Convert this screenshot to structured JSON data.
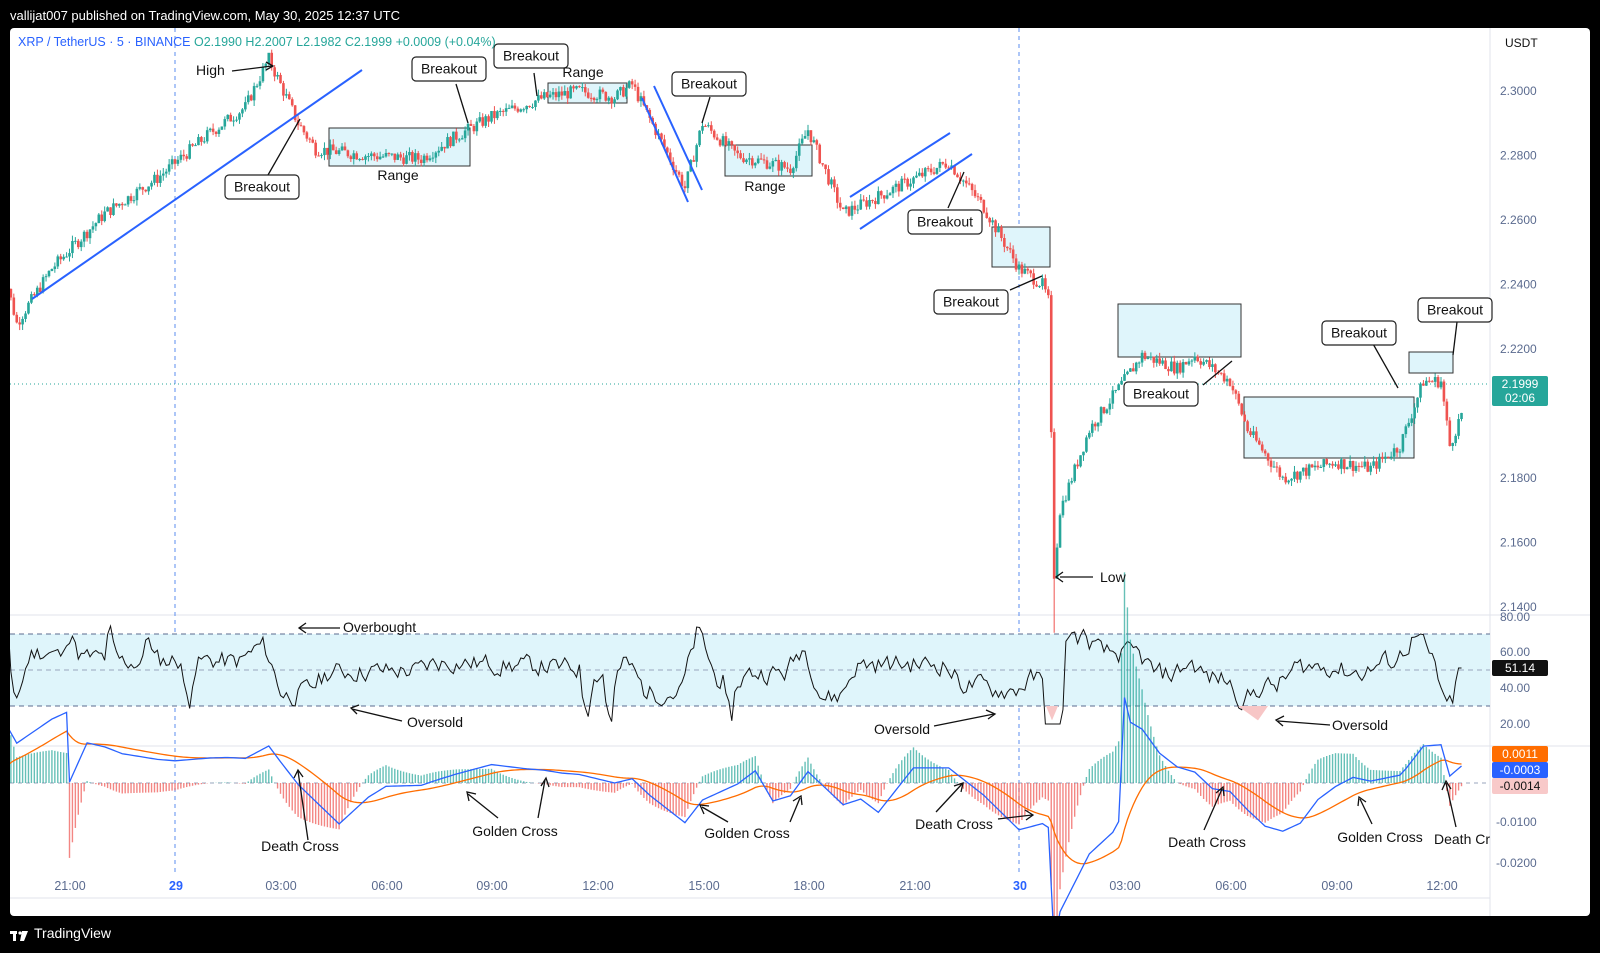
{
  "header": {
    "published_text": "vallijat007 published on TradingView.com, May 30, 2025 12:37 UTC"
  },
  "footer": {
    "brand": "TradingView"
  },
  "legend": {
    "symbol": "XRP / TetherUS · 5 · BINANCE",
    "open": "O2.1990",
    "high": "H2.2007",
    "low": "L2.1982",
    "close": "C2.1999",
    "change": "+0.0009 (+0.04%)"
  },
  "price_axis": {
    "currency": "USDT",
    "ticks": [
      "2.3000",
      "2.2800",
      "2.2600",
      "2.2400",
      "2.2200",
      "2.1800",
      "2.1600",
      "2.1400"
    ],
    "last_price": "2.1999",
    "countdown": "02:06"
  },
  "rsi_axis": {
    "ticks": [
      "80.00",
      "60.00",
      "40.00",
      "20.00"
    ],
    "value": "51.14"
  },
  "macd_axis": {
    "ticks": [
      "-0.0100",
      "-0.0200"
    ],
    "histogram": "0.0011",
    "macd": "-0.0003",
    "signal": "-0.0014"
  },
  "time_axis": {
    "ticks": [
      "21:00",
      "29",
      "03:00",
      "06:00",
      "09:00",
      "12:00",
      "15:00",
      "18:00",
      "21:00",
      "30",
      "03:00",
      "06:00",
      "09:00",
      "12:00"
    ]
  },
  "colors": {
    "up": "#26a69a",
    "down": "#ef5350",
    "trendline": "#2962ff",
    "macd": "#2962ff",
    "signal": "#ff6d00",
    "rsi_band": "#dff5fb",
    "range_box": "#dff5fb"
  },
  "annotations": {
    "high": "High",
    "low": "Low",
    "breakout": "Breakout",
    "range": "Range",
    "overbought": "Overbought",
    "oversold": "Oversold",
    "golden_cross": "Golden Cross",
    "death_cross": "Death Cross",
    "death_cross_cut": "Death Cr"
  },
  "chart_data": {
    "type": "candlestick",
    "title": "XRP / TetherUS · 5 · BINANCE",
    "x": [
      "21:00",
      "29",
      "03:00",
      "06:00",
      "09:00",
      "12:00",
      "15:00",
      "18:00",
      "21:00",
      "30",
      "03:00",
      "06:00",
      "09:00",
      "12:00"
    ],
    "close_path": [
      [
        "May 28 19:00",
        2.25
      ],
      [
        "May 28 19:30",
        2.228
      ],
      [
        "May 28 20:30",
        2.245
      ],
      [
        "May 28 22:00",
        2.262
      ],
      [
        "May 28 23:30",
        2.273
      ],
      [
        "May 29 01:00",
        2.287
      ],
      [
        "May 29 02:00",
        2.295
      ],
      [
        "May 29 02:40",
        2.31
      ],
      [
        "May 29 03:30",
        2.29
      ],
      [
        "May 29 04:00",
        2.282
      ],
      [
        "May 29 05:30",
        2.28
      ],
      [
        "May 29 07:00",
        2.279
      ],
      [
        "May 29 08:00",
        2.286
      ],
      [
        "May 29 09:00",
        2.292
      ],
      [
        "May 29 10:30",
        2.298
      ],
      [
        "May 29 11:30",
        2.3
      ],
      [
        "May 29 12:30",
        2.298
      ],
      [
        "May 29 13:00",
        2.302
      ],
      [
        "May 29 14:30",
        2.27
      ],
      [
        "May 29 15:00",
        2.29
      ],
      [
        "May 29 16:00",
        2.28
      ],
      [
        "May 29 17:30",
        2.276
      ],
      [
        "May 29 18:00",
        2.288
      ],
      [
        "May 29 19:00",
        2.262
      ],
      [
        "May 29 20:30",
        2.27
      ],
      [
        "May 29 22:00",
        2.278
      ],
      [
        "May 29 23:00",
        2.264
      ],
      [
        "May 30 00:00",
        2.245
      ],
      [
        "May 30 00:40",
        2.24
      ],
      [
        "May 30 00:50",
        2.235
      ],
      [
        "May 30 01:00",
        2.15
      ],
      [
        "May 30 01:10",
        2.17
      ],
      [
        "May 30 02:00",
        2.195
      ],
      [
        "May 30 03:30",
        2.218
      ],
      [
        "May 30 04:30",
        2.214
      ],
      [
        "May 30 05:00",
        2.218
      ],
      [
        "May 30 06:00",
        2.21
      ],
      [
        "May 30 06:30",
        2.195
      ],
      [
        "May 30 07:30",
        2.18
      ],
      [
        "May 30 09:00",
        2.185
      ],
      [
        "May 30 10:00",
        2.183
      ],
      [
        "May 30 10:50",
        2.19
      ],
      [
        "May 30 11:30",
        2.21
      ],
      [
        "May 30 12:00",
        2.21
      ],
      [
        "May 30 12:15",
        2.19
      ],
      [
        "May 30 12:35",
        2.1999
      ]
    ],
    "high_point": {
      "time": "May 29 02:40",
      "value": 2.31
    },
    "low_point": {
      "time": "May 30 01:00",
      "value": 2.132
    },
    "last": {
      "open": 2.199,
      "high": 2.2007,
      "low": 2.1982,
      "close": 2.1999,
      "change": 0.0009,
      "change_pct": 0.04
    },
    "ylim": [
      2.128,
      2.318
    ],
    "rsi": {
      "value": 51.14,
      "overbought": 70,
      "oversold": 30,
      "ylim": [
        15,
        85
      ]
    },
    "macd": {
      "histogram": 0.0011,
      "macd": -0.0003,
      "signal": -0.0014,
      "ylim": [
        -0.022,
        0.006
      ]
    }
  }
}
